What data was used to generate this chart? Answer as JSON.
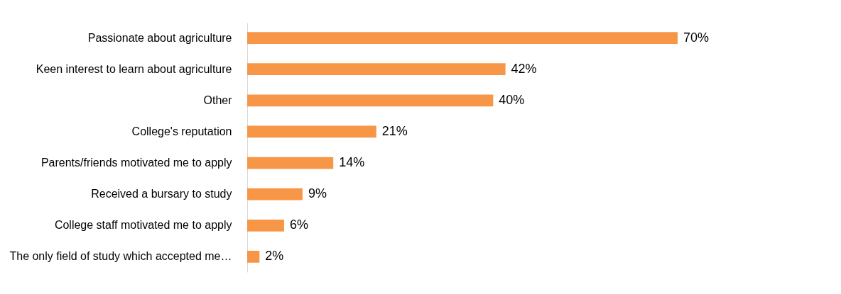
{
  "chart_data": {
    "type": "bar",
    "orientation": "horizontal",
    "relative": false,
    "categories": [
      "Passionate about agriculture",
      "Keen interest to learn about agriculture",
      "Other",
      "College's reputation",
      "Parents/friends motivated me to apply",
      "Received a bursary to study",
      "College staff motivated me to apply",
      "The only field of study which accepted me…"
    ],
    "values": [
      70,
      42,
      40,
      21,
      14,
      9,
      6,
      2
    ],
    "value_labels": [
      "70%",
      "42%",
      "40%",
      "21%",
      "14%",
      "9%",
      "6%",
      "2%"
    ],
    "color": "#f79646",
    "tick_labels": "y"
  }
}
